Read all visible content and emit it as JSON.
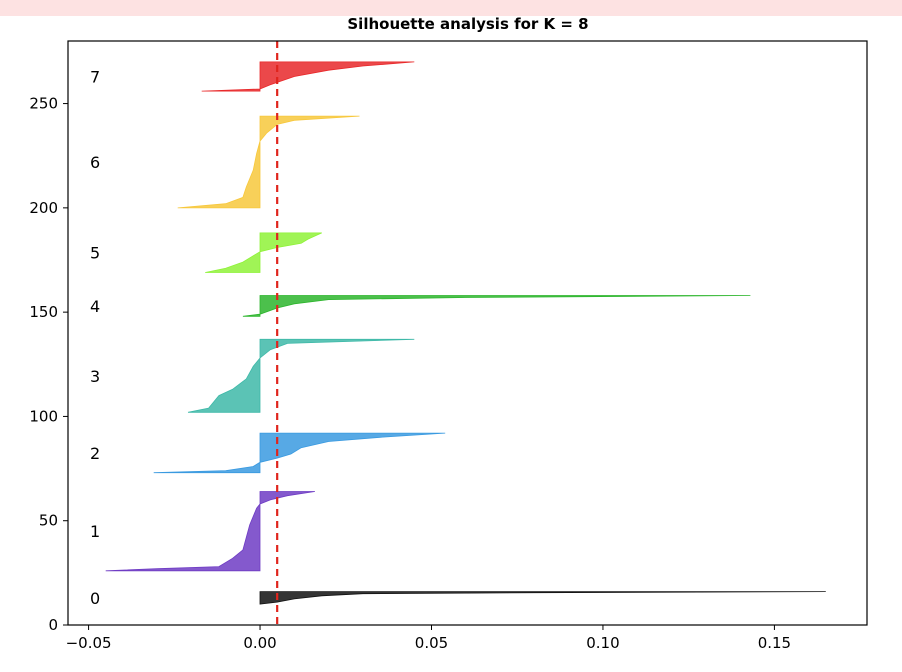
{
  "chart_data": {
    "type": "area",
    "title": "Silhouette analysis for K = 8",
    "xlabel": "",
    "ylabel": "",
    "xlim": [
      -0.056,
      0.177
    ],
    "ylim": [
      0,
      280
    ],
    "x_ticks": [
      -0.05,
      0.0,
      0.05,
      0.1,
      0.15
    ],
    "x_tick_labels": [
      "−0.05",
      "0.00",
      "0.05",
      "0.10",
      "0.15"
    ],
    "y_ticks": [
      0,
      50,
      100,
      150,
      200,
      250
    ],
    "y_tick_labels": [
      "0",
      "50",
      "100",
      "150",
      "200",
      "250"
    ],
    "grid": false,
    "average_line": {
      "x": 0.005,
      "style": "dashed",
      "color": "#e0241c"
    },
    "clusters": [
      {
        "label": "0",
        "color": "#111111",
        "y_range": [
          10,
          16
        ],
        "profile": [
          [
            0.0,
            10
          ],
          [
            0.005,
            11
          ],
          [
            0.01,
            12.5
          ],
          [
            0.018,
            14
          ],
          [
            0.03,
            15
          ],
          [
            0.08,
            15.5
          ],
          [
            0.165,
            16
          ]
        ]
      },
      {
        "label": "1",
        "color": "#6f3cc4",
        "y_range": [
          26,
          64
        ],
        "profile": [
          [
            -0.045,
            26
          ],
          [
            -0.03,
            27
          ],
          [
            -0.012,
            28
          ],
          [
            -0.008,
            32
          ],
          [
            -0.005,
            36
          ],
          [
            -0.004,
            42
          ],
          [
            -0.003,
            48
          ],
          [
            -0.001,
            56
          ],
          [
            0.0,
            58
          ],
          [
            0.003,
            60
          ],
          [
            0.008,
            62
          ],
          [
            0.016,
            64
          ]
        ]
      },
      {
        "label": "2",
        "color": "#3a9ae0",
        "y_range": [
          73,
          92
        ],
        "profile": [
          [
            -0.031,
            73
          ],
          [
            -0.01,
            74
          ],
          [
            -0.002,
            76
          ],
          [
            0.0,
            78
          ],
          [
            0.005,
            80
          ],
          [
            0.009,
            82
          ],
          [
            0.012,
            85
          ],
          [
            0.02,
            88
          ],
          [
            0.035,
            90
          ],
          [
            0.054,
            92
          ]
        ]
      },
      {
        "label": "3",
        "color": "#3eb9a8",
        "y_range": [
          102,
          137
        ],
        "profile": [
          [
            -0.021,
            102
          ],
          [
            -0.015,
            104
          ],
          [
            -0.012,
            110
          ],
          [
            -0.008,
            113
          ],
          [
            -0.004,
            118
          ],
          [
            -0.002,
            124
          ],
          [
            0.0,
            128
          ],
          [
            0.003,
            132
          ],
          [
            0.008,
            135
          ],
          [
            0.045,
            137
          ]
        ]
      },
      {
        "label": "4",
        "color": "#2db52d",
        "y_range": [
          148,
          158
        ],
        "profile": [
          [
            -0.005,
            148
          ],
          [
            0.0,
            149
          ],
          [
            0.005,
            152
          ],
          [
            0.01,
            154
          ],
          [
            0.02,
            156
          ],
          [
            0.06,
            157
          ],
          [
            0.143,
            158
          ]
        ]
      },
      {
        "label": "5",
        "color": "#8ff238",
        "y_range": [
          169,
          188
        ],
        "profile": [
          [
            -0.016,
            169
          ],
          [
            -0.01,
            171
          ],
          [
            -0.005,
            174
          ],
          [
            -0.002,
            177
          ],
          [
            0.0,
            179
          ],
          [
            0.005,
            181
          ],
          [
            0.012,
            183
          ],
          [
            0.014,
            185
          ],
          [
            0.018,
            188
          ]
        ]
      },
      {
        "label": "6",
        "color": "#f7c83c",
        "y_range": [
          200,
          244
        ],
        "profile": [
          [
            -0.024,
            200
          ],
          [
            -0.01,
            202
          ],
          [
            -0.005,
            205
          ],
          [
            -0.004,
            210
          ],
          [
            -0.002,
            218
          ],
          [
            -0.001,
            226
          ],
          [
            0.0,
            232
          ],
          [
            0.002,
            236
          ],
          [
            0.005,
            240
          ],
          [
            0.01,
            242
          ],
          [
            0.029,
            244
          ]
        ]
      },
      {
        "label": "7",
        "color": "#e8282a",
        "y_range": [
          256,
          270
        ],
        "profile": [
          [
            -0.017,
            256
          ],
          [
            0.0,
            257
          ],
          [
            0.003,
            259
          ],
          [
            0.01,
            263
          ],
          [
            0.02,
            266
          ],
          [
            0.03,
            268
          ],
          [
            0.045,
            270
          ]
        ]
      }
    ]
  }
}
